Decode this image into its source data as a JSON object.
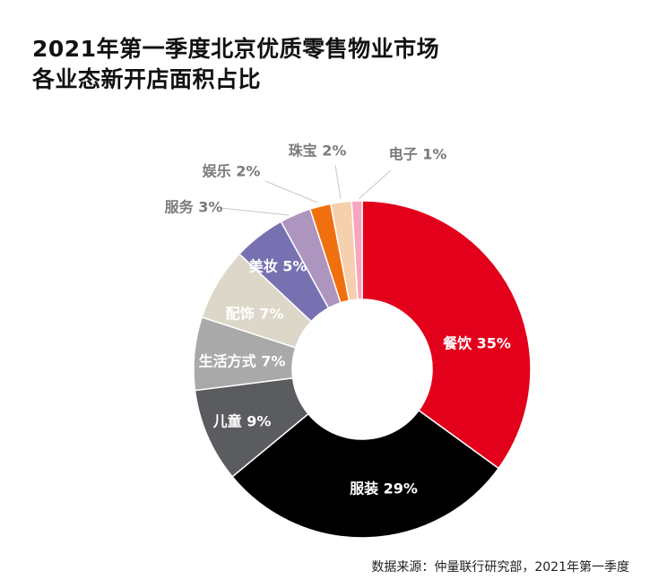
{
  "title": {
    "line1": "2021年第一季度北京优质零售物业市场",
    "line2": "各业态新开店面积占比"
  },
  "source": "数据来源：仲量联行研究部，2021年第一季度",
  "chart_data": {
    "type": "pie",
    "variant": "donut",
    "unit": "%",
    "title": "2021年第一季度北京优质零售物业市场各业态新开店面积占比",
    "categories": [
      "餐饮",
      "服装",
      "儿童",
      "生活方式",
      "配饰",
      "美妆",
      "服务",
      "娱乐",
      "珠宝",
      "电子"
    ],
    "values": [
      35,
      29,
      9,
      7,
      7,
      5,
      3,
      2,
      2,
      1
    ],
    "labels": [
      "餐饮 35%",
      "服装 29%",
      "儿童 9%",
      "生活方式 7%",
      "配饰 7%",
      "美妆 5%",
      "服务 3%",
      "娱乐 2%",
      "珠宝 2%",
      "电子 1%"
    ],
    "colors": [
      "#e2001a",
      "#000000",
      "#5b5c5f",
      "#a9a9aa",
      "#dcd7c9",
      "#7771b1",
      "#ad95bf",
      "#f07010",
      "#f6cfad",
      "#f7a6c0"
    ],
    "label_colors": [
      "#ffffff",
      "#ffffff",
      "#ffffff",
      "#ffffff",
      "#ffffff",
      "#ffffff",
      "#7a7a7a",
      "#7a7a7a",
      "#7a7a7a",
      "#7a7a7a"
    ],
    "legend": "none"
  }
}
